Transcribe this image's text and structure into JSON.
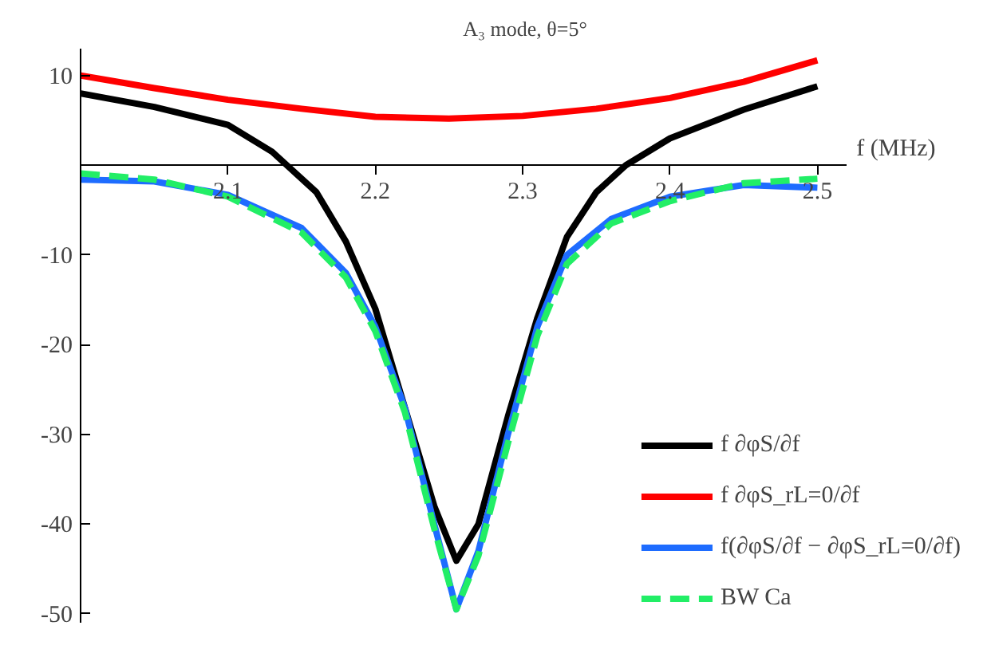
{
  "chart_data": {
    "type": "line",
    "title": "A₃ mode, θ=5°",
    "xlabel": "f (MHz)",
    "xlim": [
      2.0,
      2.52
    ],
    "ylim": [
      -51,
      13
    ],
    "xticks": [
      2.1,
      2.2,
      2.3,
      2.4,
      2.5
    ],
    "yticks": [
      -50,
      -40,
      -30,
      -20,
      -10,
      10
    ],
    "grid": false,
    "legend": "bottom right",
    "line_style": "solid",
    "marker": "none",
    "series": [
      {
        "name": "f ∂φS/∂f",
        "color": "#000000",
        "x": [
          2.0,
          2.05,
          2.1,
          2.13,
          2.16,
          2.18,
          2.2,
          2.22,
          2.24,
          2.255,
          2.27,
          2.29,
          2.31,
          2.33,
          2.35,
          2.37,
          2.4,
          2.45,
          2.5
        ],
        "values": [
          8,
          6.5,
          4.5,
          1.5,
          -3,
          -8.5,
          -16,
          -27,
          -38,
          -44.1,
          -40,
          -28,
          -17,
          -8,
          -3,
          0,
          3,
          6.2,
          8.8
        ]
      },
      {
        "name": "f ∂φS_rL=0/∂f",
        "color": "#ff0000",
        "x": [
          2.0,
          2.05,
          2.1,
          2.15,
          2.2,
          2.25,
          2.3,
          2.35,
          2.4,
          2.45,
          2.5
        ],
        "values": [
          10,
          8.6,
          7.3,
          6.3,
          5.4,
          5.2,
          5.5,
          6.3,
          7.5,
          9.3,
          11.7
        ]
      },
      {
        "name": "f(∂φS/∂f − ∂φS_rL=0/∂f)",
        "color": "#1e6cff",
        "x": [
          2.0,
          2.05,
          2.1,
          2.15,
          2.18,
          2.2,
          2.22,
          2.24,
          2.255,
          2.27,
          2.29,
          2.31,
          2.33,
          2.36,
          2.4,
          2.45,
          2.5
        ],
        "values": [
          -1.6,
          -1.8,
          -3.3,
          -7,
          -12,
          -18,
          -27,
          -40,
          -49.5,
          -43,
          -30,
          -18,
          -10,
          -6,
          -3.5,
          -2.2,
          -2.5
        ]
      },
      {
        "name": "BW Ca",
        "color": "#22ee66",
        "line_style": "dashed",
        "x": [
          2.0,
          2.05,
          2.1,
          2.15,
          2.18,
          2.2,
          2.22,
          2.24,
          2.255,
          2.27,
          2.29,
          2.31,
          2.33,
          2.36,
          2.4,
          2.45,
          2.5
        ],
        "values": [
          -0.9,
          -1.6,
          -3.5,
          -7.5,
          -12.5,
          -18.5,
          -27.5,
          -40.5,
          -49.5,
          -43.5,
          -31,
          -19,
          -11,
          -6.5,
          -4,
          -2,
          -1.5
        ]
      }
    ]
  }
}
